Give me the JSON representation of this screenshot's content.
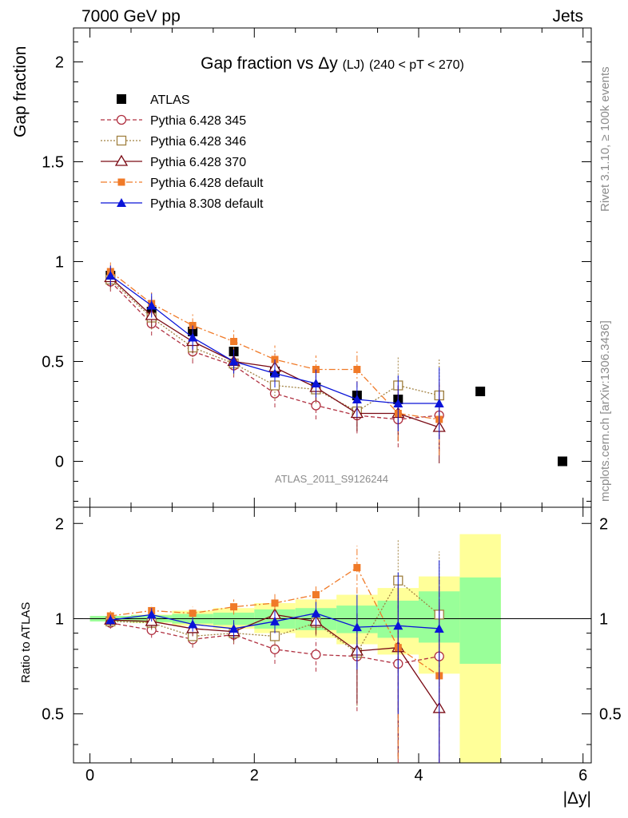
{
  "header": {
    "left": "7000 GeV pp",
    "right": "Jets"
  },
  "side": {
    "rivet": "Rivet 3.1.10, ≥ 100k events",
    "mcplots": "mcplots.cern.ch [arXiv:1306.3436]"
  },
  "chart_data": [
    {
      "type": "line",
      "title_main": "Gap fraction vs",
      "title_sym": "Δy",
      "title_lj": "(LJ)",
      "title_cut": "(240 < pT < 270)",
      "ylabel": "Gap fraction",
      "analysis_tag": "ATLAS_2011_S9126244",
      "xlim": [
        -0.2,
        6.1
      ],
      "ylim": [
        -0.23,
        2.17
      ],
      "yticks": [
        "0",
        "0.5",
        "1",
        "1.5",
        "2"
      ],
      "legend_position": "top-left",
      "series": [
        {
          "name": "ATLAS",
          "color": "#000000",
          "marker": "square-filled",
          "line": "none",
          "x": [
            0.25,
            0.75,
            1.25,
            1.75,
            2.25,
            2.75,
            3.25,
            3.75,
            4.25,
            4.75,
            5.75
          ],
          "y": [
            0.93,
            0.75,
            0.65,
            0.55,
            0.45,
            0.37,
            0.33,
            0.31,
            0.33,
            0.35,
            0.0
          ]
        },
        {
          "name": "Pythia 6.428 345",
          "color": "#b03040",
          "marker": "circle-open",
          "line": "dashed",
          "x": [
            0.25,
            0.75,
            1.25,
            1.75,
            2.25,
            2.75,
            3.25,
            3.75,
            4.25
          ],
          "y": [
            0.9,
            0.69,
            0.55,
            0.48,
            0.34,
            0.28,
            0.23,
            0.21,
            0.23
          ]
        },
        {
          "name": "Pythia 6.428 346",
          "color": "#a08040",
          "marker": "square-open",
          "line": "dotted",
          "x": [
            0.25,
            0.75,
            1.25,
            1.75,
            2.25,
            2.75,
            3.25,
            3.75,
            4.25
          ],
          "y": [
            0.91,
            0.72,
            0.57,
            0.49,
            0.38,
            0.36,
            0.25,
            0.38,
            0.33
          ]
        },
        {
          "name": "Pythia 6.428 370",
          "color": "#7a0a14",
          "marker": "triangle-open",
          "line": "solid",
          "x": [
            0.25,
            0.75,
            1.25,
            1.75,
            2.25,
            2.75,
            3.25,
            3.75,
            4.25
          ],
          "y": [
            0.92,
            0.73,
            0.6,
            0.5,
            0.47,
            0.37,
            0.24,
            0.24,
            0.17
          ]
        },
        {
          "name": "Pythia 6.428 default",
          "color": "#f07a28",
          "marker": "square-filled-small",
          "line": "dashdot",
          "x": [
            0.25,
            0.75,
            1.25,
            1.75,
            2.25,
            2.75,
            3.25,
            3.75,
            4.25
          ],
          "y": [
            0.95,
            0.79,
            0.68,
            0.6,
            0.51,
            0.46,
            0.46,
            0.24,
            0.21
          ]
        },
        {
          "name": "Pythia 8.308 default",
          "color": "#0a14d8",
          "marker": "triangle-filled",
          "line": "solid",
          "x": [
            0.25,
            0.75,
            1.25,
            1.75,
            2.25,
            2.75,
            3.25,
            3.75,
            4.25
          ],
          "y": [
            0.93,
            0.78,
            0.62,
            0.5,
            0.44,
            0.39,
            0.31,
            0.29,
            0.29
          ]
        }
      ]
    },
    {
      "type": "line",
      "ylabel": "Ratio to ATLAS",
      "xlabel": "|Δy|",
      "xlim": [
        -0.2,
        6.1
      ],
      "ylim": [
        0.35,
        2.25
      ],
      "yticks": [
        "0.5",
        "1",
        "2"
      ],
      "xticks": [
        "0",
        "2",
        "4",
        "6"
      ],
      "band_bins": [
        [
          0.0,
          0.5
        ],
        [
          0.5,
          1.0
        ],
        [
          1.0,
          1.5
        ],
        [
          1.5,
          2.0
        ],
        [
          2.0,
          2.5
        ],
        [
          2.5,
          3.0
        ],
        [
          3.0,
          3.5
        ],
        [
          3.5,
          4.0
        ],
        [
          4.0,
          4.5
        ],
        [
          4.5,
          5.0
        ]
      ],
      "band_stat": [
        [
          0.98,
          1.02
        ],
        [
          0.975,
          1.025
        ],
        [
          0.965,
          1.035
        ],
        [
          0.955,
          1.045
        ],
        [
          0.93,
          1.07
        ],
        [
          0.92,
          1.08
        ],
        [
          0.9,
          1.1
        ],
        [
          0.87,
          1.14
        ],
        [
          0.84,
          1.22
        ],
        [
          0.72,
          1.35
        ]
      ],
      "band_total": [
        [
          0.98,
          1.02
        ],
        [
          0.97,
          1.03
        ],
        [
          0.95,
          1.06
        ],
        [
          0.93,
          1.08
        ],
        [
          0.9,
          1.12
        ],
        [
          0.87,
          1.15
        ],
        [
          0.83,
          1.19
        ],
        [
          0.77,
          1.25
        ],
        [
          0.67,
          1.36
        ],
        [
          0.35,
          1.85
        ]
      ],
      "series": [
        {
          "name": "Pythia 6.428 345",
          "x": [
            0.25,
            0.75,
            1.25,
            1.75,
            2.25,
            2.75,
            3.25,
            3.75,
            4.25
          ],
          "y": [
            0.97,
            0.92,
            0.86,
            0.89,
            0.8,
            0.77,
            0.76,
            0.72,
            0.76
          ]
        },
        {
          "name": "Pythia 6.428 346",
          "x": [
            0.25,
            0.75,
            1.25,
            1.75,
            2.25,
            2.75,
            3.25,
            3.75,
            4.25
          ],
          "y": [
            0.98,
            0.97,
            0.88,
            0.9,
            0.88,
            0.97,
            0.78,
            1.32,
            1.03
          ]
        },
        {
          "name": "Pythia 6.428 370",
          "x": [
            0.25,
            0.75,
            1.25,
            1.75,
            2.25,
            2.75,
            3.25,
            3.75,
            4.25
          ],
          "y": [
            0.99,
            0.98,
            0.93,
            0.91,
            1.03,
            0.98,
            0.79,
            0.81,
            0.52
          ]
        },
        {
          "name": "Pythia 6.428 default",
          "x": [
            0.25,
            0.75,
            1.25,
            1.75,
            2.25,
            2.75,
            3.25,
            3.75,
            4.25
          ],
          "y": [
            1.02,
            1.06,
            1.04,
            1.09,
            1.12,
            1.19,
            1.45,
            0.81,
            0.66
          ]
        },
        {
          "name": "Pythia 8.308 default",
          "x": [
            0.25,
            0.75,
            1.25,
            1.75,
            2.25,
            2.75,
            3.25,
            3.75,
            4.25
          ],
          "y": [
            0.99,
            1.03,
            0.96,
            0.93,
            0.98,
            1.04,
            0.94,
            0.95,
            0.93
          ]
        }
      ]
    }
  ]
}
